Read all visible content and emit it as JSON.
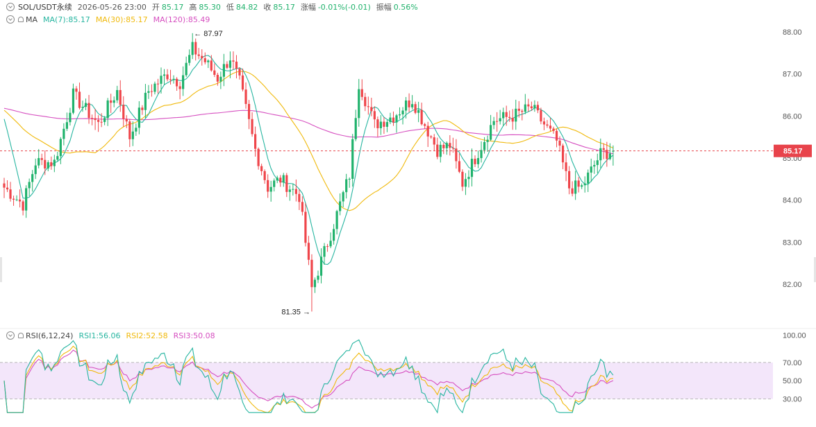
{
  "header": {
    "symbol": "SOL/USDT永续",
    "datetime": "2026-05-26 23:00",
    "open_label": "开",
    "open": "85.17",
    "high_label": "高",
    "high": "85.30",
    "low_label": "低",
    "low": "84.82",
    "close_label": "收",
    "close": "85.17",
    "change_label": "涨幅",
    "change": "-0.01%(-0.01)",
    "amp_label": "振幅",
    "amp": "0.56%"
  },
  "ma_legend": {
    "name": "MA",
    "ma7": "MA(7):85.17",
    "ma30": "MA(30):85.17",
    "ma120": "MA(120):85.49"
  },
  "rsi_legend": {
    "name": "RSI(6,12,24)",
    "rsi1": "RSI1:56.06",
    "rsi2": "RSI2:52.58",
    "rsi3": "RSI3:50.08"
  },
  "colors": {
    "up": "#20b26c",
    "down": "#ef454a",
    "ma7": "#26b5a0",
    "ma30": "#f0b90b",
    "ma120": "#d64fc0",
    "rsi_band": "#f3e6fa",
    "price_tag": "#e8434b"
  },
  "chart_data": [
    {
      "type": "candlestick",
      "title": "",
      "y_ticks": [
        "88.00",
        "87.00",
        "86.00",
        "85.00",
        "84.00",
        "83.00",
        "82.00"
      ],
      "ylim": [
        81.2,
        88.3
      ],
      "current_price": "85.17",
      "max_label": "87.97",
      "max_value": 87.97,
      "min_label": "81.35",
      "min_value": 81.35,
      "key_points": [
        [
          0,
          84.3
        ],
        [
          6,
          83.9
        ],
        [
          10,
          84.9
        ],
        [
          16,
          84.9
        ],
        [
          22,
          86.5
        ],
        [
          30,
          85.8
        ],
        [
          36,
          86.6
        ],
        [
          40,
          85.5
        ],
        [
          46,
          86.6
        ],
        [
          52,
          87.0
        ],
        [
          56,
          86.8
        ],
        [
          60,
          87.6
        ],
        [
          64,
          87.3
        ],
        [
          68,
          86.9
        ],
        [
          72,
          87.4
        ],
        [
          75,
          86.8
        ],
        [
          80,
          85.2
        ],
        [
          84,
          84.3
        ],
        [
          88,
          84.5
        ],
        [
          94,
          84.1
        ],
        [
          98,
          81.9
        ],
        [
          104,
          83.2
        ],
        [
          110,
          84.6
        ],
        [
          113,
          86.8
        ],
        [
          118,
          85.8
        ],
        [
          124,
          86.0
        ],
        [
          130,
          86.4
        ],
        [
          134,
          85.8
        ],
        [
          138,
          85.2
        ],
        [
          142,
          85.3
        ],
        [
          146,
          84.4
        ],
        [
          150,
          85.0
        ],
        [
          156,
          85.9
        ],
        [
          162,
          86.0
        ],
        [
          168,
          86.2
        ],
        [
          172,
          85.8
        ],
        [
          176,
          85.4
        ],
        [
          180,
          84.3
        ],
        [
          184,
          84.3
        ],
        [
          190,
          85.1
        ],
        [
          194,
          85.17
        ]
      ],
      "ma7": "85.17",
      "ma30": "85.17",
      "ma120": "85.49"
    },
    {
      "type": "line",
      "title": "",
      "y_ticks": [
        "100.00",
        "70.00",
        "50.00",
        "30.00"
      ],
      "ylim": [
        15,
        100
      ],
      "band": [
        30,
        70
      ],
      "rsi1": 56.06,
      "rsi2": 52.58,
      "rsi3": 50.08
    }
  ]
}
